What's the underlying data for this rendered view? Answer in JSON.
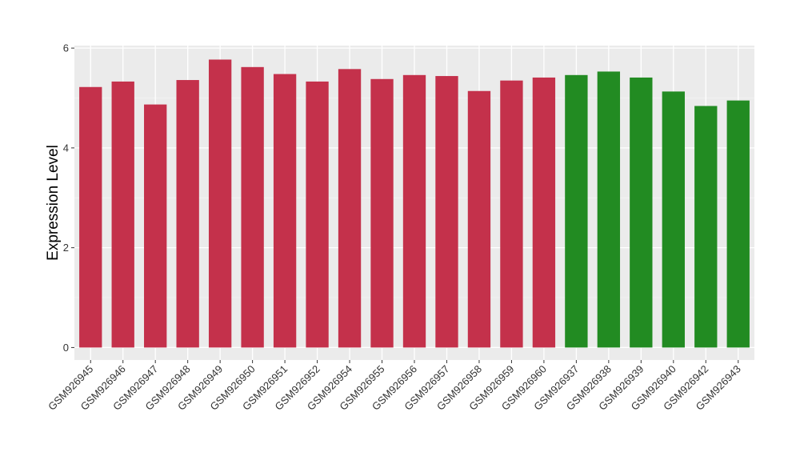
{
  "chart_data": {
    "type": "bar",
    "title": "",
    "xlabel": "",
    "ylabel": "Expression Level",
    "ylim": [
      -0.25,
      6.05
    ],
    "yticks": [
      0,
      2,
      4,
      6
    ],
    "grid": true,
    "legend": "none",
    "colors": {
      "group_a": "#c4314b",
      "group_b": "#228b22",
      "panel": "#ebebeb",
      "grid_major": "#ffffff",
      "grid_minor": "#f5f5f5"
    },
    "categories": [
      "GSM926945",
      "GSM926946",
      "GSM926947",
      "GSM926948",
      "GSM926949",
      "GSM926950",
      "GSM926951",
      "GSM926952",
      "GSM926954",
      "GSM926955",
      "GSM926956",
      "GSM926957",
      "GSM926958",
      "GSM926959",
      "GSM926960",
      "GSM926937",
      "GSM926938",
      "GSM926939",
      "GSM926940",
      "GSM926942",
      "GSM926943"
    ],
    "values": [
      5.22,
      5.33,
      4.87,
      5.36,
      5.77,
      5.62,
      5.48,
      5.33,
      5.58,
      5.38,
      5.46,
      5.44,
      5.14,
      5.35,
      5.41,
      5.46,
      5.53,
      5.41,
      5.13,
      4.84,
      4.95
    ],
    "groups": [
      "a",
      "a",
      "a",
      "a",
      "a",
      "a",
      "a",
      "a",
      "a",
      "a",
      "a",
      "a",
      "a",
      "a",
      "a",
      "b",
      "b",
      "b",
      "b",
      "b",
      "b"
    ]
  }
}
